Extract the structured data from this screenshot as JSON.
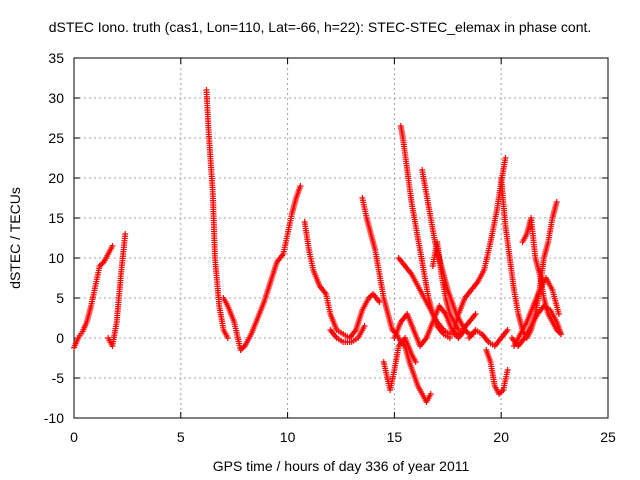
{
  "chart_data": {
    "type": "scatter",
    "title": "dSTEC Iono. truth (cas1, Lon=110, Lat=-66, h=22): STEC-STEC_elemax in phase cont.",
    "xlabel": "GPS time / hours of day 336 of year 2011",
    "ylabel": "dSTEC  / TECUs",
    "xlim": [
      0,
      25
    ],
    "ylim": [
      -10,
      35
    ],
    "xticks": [
      "0",
      "5",
      "10",
      "15",
      "20",
      "25"
    ],
    "yticks": [
      "-10",
      "-5",
      "0",
      "5",
      "10",
      "15",
      "20",
      "25",
      "30",
      "35"
    ],
    "grid": true,
    "marker": "plus",
    "color": "#ff0000",
    "series": [
      {
        "x": [
          0.0,
          0.2,
          0.4,
          0.6,
          0.8,
          1.0,
          1.2,
          1.4,
          1.6,
          1.8
        ],
        "y": [
          -1.2,
          0.0,
          0.8,
          2.0,
          4.0,
          6.5,
          9.0,
          9.5,
          10.5,
          11.5
        ]
      },
      {
        "x": [
          1.6,
          1.8,
          2.0,
          2.2,
          2.4
        ],
        "y": [
          0.0,
          -1.0,
          2.0,
          8.0,
          13.0
        ]
      },
      {
        "x": [
          6.2,
          6.3,
          6.5,
          6.6,
          6.8,
          7.0,
          7.2
        ],
        "y": [
          31.0,
          26.0,
          18.0,
          10.0,
          4.0,
          1.0,
          0.0
        ]
      },
      {
        "x": [
          7.0,
          7.2,
          7.5,
          7.8,
          8.0,
          8.3,
          8.6,
          8.9,
          9.2,
          9.5,
          9.8,
          10.0,
          10.2,
          10.4,
          10.6
        ],
        "y": [
          5.0,
          4.0,
          2.0,
          -1.5,
          -1.0,
          0.5,
          2.5,
          4.5,
          7.0,
          9.5,
          10.5,
          13.0,
          15.5,
          17.5,
          19.0
        ]
      },
      {
        "x": [
          10.8,
          11.0,
          11.2,
          11.5,
          11.8,
          12.0,
          12.3,
          12.6,
          12.9,
          13.2,
          13.5,
          13.8,
          14.0,
          14.3
        ],
        "y": [
          14.5,
          11.0,
          8.5,
          6.5,
          5.5,
          3.0,
          1.0,
          0.5,
          0.0,
          1.0,
          3.5,
          5.0,
          5.5,
          4.5
        ]
      },
      {
        "x": [
          12.0,
          12.3,
          12.6,
          13.0,
          13.3,
          13.6
        ],
        "y": [
          1.0,
          0.0,
          -0.5,
          -0.5,
          0.0,
          1.5
        ]
      },
      {
        "x": [
          13.5,
          13.7,
          13.9,
          14.1,
          14.3,
          14.5,
          14.7,
          14.9,
          15.1,
          15.3,
          15.5,
          15.7,
          15.9,
          16.1,
          16.3,
          16.5,
          16.7
        ],
        "y": [
          17.5,
          15.0,
          13.0,
          11.0,
          8.0,
          5.0,
          3.0,
          1.0,
          0.5,
          -0.5,
          -1.0,
          -3.0,
          -4.5,
          -6.0,
          -7.0,
          -8.0,
          -7.0
        ]
      },
      {
        "x": [
          15.3,
          15.4,
          15.6,
          15.8,
          16.0,
          16.2,
          16.4,
          16.6,
          16.8,
          17.0,
          17.3,
          17.6
        ],
        "y": [
          26.5,
          25.0,
          21.0,
          17.0,
          14.0,
          11.0,
          8.0,
          5.0,
          3.0,
          1.5,
          0.5,
          0.0
        ]
      },
      {
        "x": [
          15.0,
          15.3,
          15.6,
          15.9,
          16.2,
          16.5,
          16.8,
          17.1,
          17.4,
          17.7,
          18.0,
          18.3
        ],
        "y": [
          0.0,
          2.0,
          3.0,
          1.0,
          -1.0,
          0.0,
          2.0,
          4.0,
          3.0,
          1.0,
          0.0,
          1.0
        ]
      },
      {
        "x": [
          14.5,
          14.8,
          15.0,
          15.2,
          15.5,
          15.8,
          16.0
        ],
        "y": [
          -3.0,
          -6.5,
          -4.0,
          -1.0,
          0.0,
          -2.0,
          -3.0
        ]
      },
      {
        "x": [
          15.2,
          15.5,
          15.8,
          16.1,
          16.4,
          16.7,
          17.0,
          17.3,
          17.6,
          17.9,
          18.2,
          18.5,
          18.8
        ],
        "y": [
          10.0,
          9.0,
          8.0,
          6.5,
          5.0,
          3.5,
          2.0,
          1.0,
          0.5,
          0.5,
          1.0,
          2.0,
          3.0
        ]
      },
      {
        "x": [
          16.3,
          16.5,
          16.7,
          16.9,
          17.1,
          17.3,
          17.5,
          17.7,
          17.9,
          18.1,
          18.3,
          18.5,
          18.7
        ],
        "y": [
          21.0,
          18.0,
          15.0,
          12.0,
          10.0,
          8.0,
          6.0,
          4.5,
          3.0,
          2.0,
          1.0,
          0.5,
          0.5
        ]
      },
      {
        "x": [
          16.8,
          17.0,
          17.2,
          17.4,
          17.6,
          17.8,
          18.0
        ],
        "y": [
          9.0,
          12.0,
          8.0,
          5.0,
          3.0,
          2.0,
          1.0
        ]
      },
      {
        "x": [
          17.8,
          18.0,
          18.3,
          18.6,
          18.9,
          19.2,
          19.5,
          19.8,
          20.0,
          20.2
        ],
        "y": [
          1.0,
          3.0,
          5.0,
          6.0,
          7.0,
          8.5,
          12.0,
          16.0,
          19.5,
          22.5
        ]
      },
      {
        "x": [
          18.5,
          18.8,
          19.1,
          19.4,
          19.7,
          20.0,
          20.3
        ],
        "y": [
          0.0,
          1.0,
          0.5,
          -0.5,
          -1.0,
          0.0,
          1.0
        ]
      },
      {
        "x": [
          19.3,
          19.5,
          19.7,
          19.9,
          20.1,
          20.3
        ],
        "y": [
          -1.5,
          -3.0,
          -6.0,
          -7.0,
          -6.5,
          -4.0
        ]
      },
      {
        "x": [
          20.0,
          20.2,
          20.4,
          20.6,
          20.8,
          21.0,
          21.2,
          21.4,
          21.6,
          21.8,
          22.0,
          22.2,
          22.4,
          22.6
        ],
        "y": [
          20.0,
          14.0,
          10.0,
          6.0,
          3.0,
          1.0,
          0.0,
          1.0,
          3.0,
          6.0,
          10.0,
          12.0,
          15.0,
          17.0
        ]
      },
      {
        "x": [
          20.5,
          20.8,
          21.1,
          21.4,
          21.7,
          22.0,
          22.3,
          22.6,
          22.8
        ],
        "y": [
          0.0,
          -1.0,
          0.0,
          1.5,
          3.0,
          4.0,
          3.5,
          2.0,
          0.5
        ]
      },
      {
        "x": [
          21.0,
          21.2,
          21.4,
          21.6,
          21.8,
          22.0,
          22.2,
          22.4,
          22.6,
          22.8
        ],
        "y": [
          12.0,
          13.0,
          15.0,
          10.0,
          8.0,
          5.0,
          3.0,
          2.0,
          1.0,
          0.5
        ]
      },
      {
        "x": [
          20.6,
          20.9,
          21.2,
          21.5,
          21.8,
          22.1,
          22.4,
          22.7
        ],
        "y": [
          -1.0,
          0.5,
          2.0,
          4.0,
          6.0,
          7.5,
          6.0,
          3.0
        ]
      }
    ]
  }
}
